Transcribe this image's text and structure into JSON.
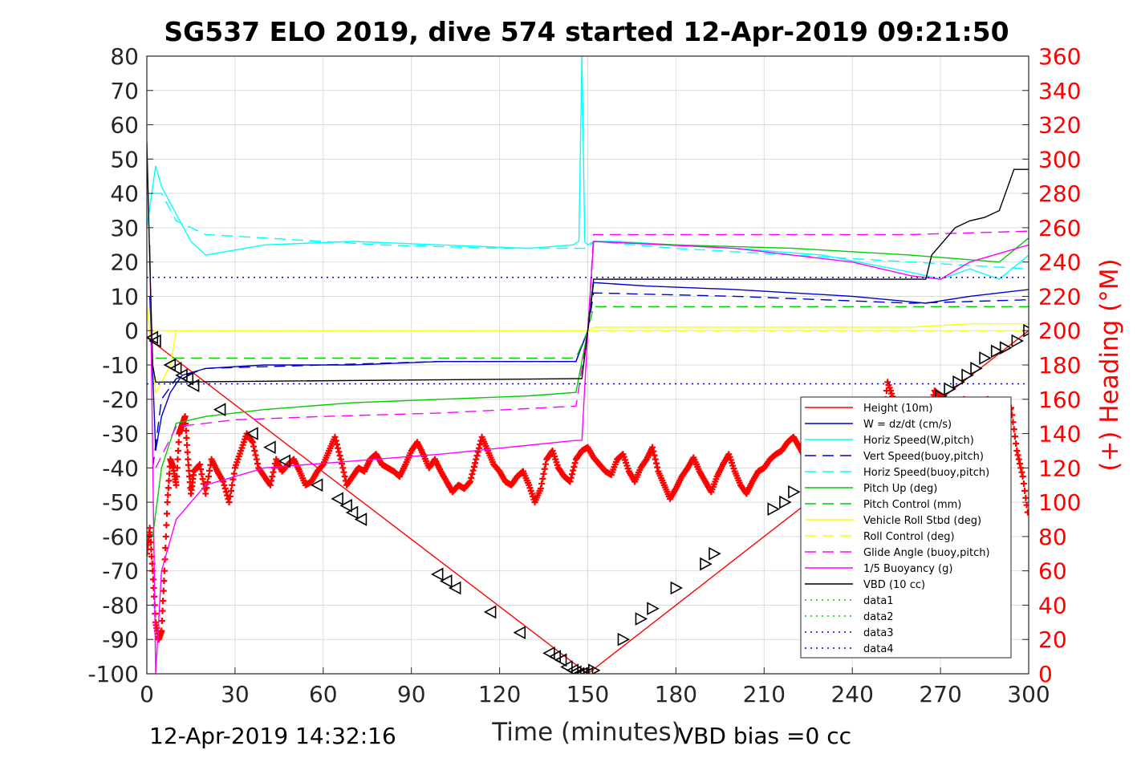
{
  "chart_data": {
    "type": "line",
    "title": "SG537 ELO 2019, dive 574 started 12-Apr-2019 09:21:50",
    "xlabel": "Time (minutes)",
    "ylabel": "",
    "ylabel_right": "(+) Heading (°M)",
    "xlim": [
      0,
      300
    ],
    "ylim": [
      -100,
      80
    ],
    "ylim_right": [
      0,
      360
    ],
    "grid": true,
    "legend_position": "bottom-right",
    "xticks": [
      "0",
      "30",
      "60",
      "90",
      "120",
      "150",
      "180",
      "210",
      "240",
      "270",
      "300"
    ],
    "yticks": [
      "80",
      "70",
      "60",
      "50",
      "40",
      "30",
      "20",
      "10",
      "0",
      "-10",
      "-20",
      "-30",
      "-40",
      "-50",
      "-60",
      "-70",
      "-80",
      "-90",
      "-100"
    ],
    "yticks_right": [
      "360",
      "340",
      "320",
      "300",
      "280",
      "260",
      "240",
      "220",
      "200",
      "180",
      "160",
      "140",
      "120",
      "100",
      "80",
      "60",
      "40",
      "20",
      "0"
    ],
    "footer_left": "12-Apr-2019 14:32:16",
    "footer_right": "VBD bias =0 cc",
    "series": [
      {
        "name": "Height (10m)",
        "color": "#ff0000",
        "style": "solid",
        "x": [
          0,
          150,
          300
        ],
        "y": [
          -2,
          -100,
          0
        ]
      },
      {
        "name": "W = dz/dt (cm/s)",
        "color": "#0000cd",
        "style": "solid",
        "x": [
          1,
          3,
          5,
          8,
          12,
          20,
          40,
          70,
          100,
          130,
          146,
          150,
          152,
          170,
          200,
          240,
          265,
          280,
          300
        ],
        "y": [
          10,
          -35,
          -25,
          -18,
          -13,
          -11,
          -10,
          -10,
          -9,
          -9,
          -9,
          0,
          14,
          13,
          12,
          10,
          8,
          10,
          12
        ]
      },
      {
        "name": "Horiz Speed(W,pitch)",
        "color": "#00ffff",
        "style": "solid",
        "x": [
          0,
          3,
          5,
          10,
          15,
          20,
          40,
          70,
          100,
          130,
          145,
          147,
          148,
          149,
          150,
          152,
          160,
          180,
          200,
          230,
          260,
          270,
          280,
          290,
          300
        ],
        "y": [
          30,
          48,
          42,
          34,
          26,
          22,
          25,
          26,
          25,
          24,
          25,
          26,
          80,
          26,
          25,
          26,
          26,
          25,
          24,
          22,
          17,
          15,
          18,
          15,
          22
        ]
      },
      {
        "name": "Vert Speed(buoy,pitch)",
        "color": "#0000cd",
        "style": "dashed",
        "x": [
          2,
          5,
          10,
          20,
          60,
          100,
          146,
          150,
          152,
          200,
          260,
          300
        ],
        "y": [
          -40,
          -20,
          -14,
          -11,
          -10,
          -9,
          -9,
          0,
          11,
          10,
          8,
          9
        ]
      },
      {
        "name": "Horiz Speed(buoy,pitch)",
        "color": "#00ffff",
        "style": "dashed",
        "x": [
          2,
          5,
          10,
          20,
          40,
          80,
          120,
          146,
          150,
          152,
          180,
          220,
          260,
          300
        ],
        "y": [
          40,
          40,
          32,
          28,
          27,
          25,
          24,
          24,
          24,
          26,
          24,
          22,
          20,
          18
        ]
      },
      {
        "name": "Pitch Up (deg)",
        "color": "#00cc00",
        "style": "solid",
        "x": [
          2,
          5,
          10,
          20,
          40,
          70,
          100,
          130,
          146,
          150,
          152,
          180,
          220,
          260,
          290,
          300
        ],
        "y": [
          -60,
          -40,
          -27,
          -25,
          -23,
          -21,
          -20,
          -19,
          -18,
          0,
          26,
          25,
          24,
          22,
          20,
          27
        ]
      },
      {
        "name": "Pitch Control (mm)",
        "color": "#00cc00",
        "style": "dashed",
        "x": [
          3,
          10,
          60,
          146,
          150,
          152,
          300
        ],
        "y": [
          -8,
          -8,
          -8,
          -8,
          0,
          7,
          7
        ]
      },
      {
        "name": "Vehicle Roll Stbd (deg)",
        "color": "#ffff00",
        "style": "solid",
        "x": [
          0,
          3,
          5,
          8,
          10,
          30,
          60,
          90,
          120,
          146,
          148,
          150,
          152,
          170,
          200,
          230,
          260,
          280,
          300
        ],
        "y": [
          8,
          -18,
          -15,
          -10,
          0,
          0,
          0,
          0,
          0,
          0,
          0,
          0,
          1,
          1,
          1,
          1,
          1,
          2,
          2
        ]
      },
      {
        "name": "Roll Control (deg)",
        "color": "#ffff00",
        "style": "dashed",
        "x": [
          0,
          300
        ],
        "y": [
          0,
          0
        ]
      },
      {
        "name": "Glide Angle (buoy,pitch)",
        "color": "#ff00ff",
        "style": "dashed",
        "x": [
          3,
          10,
          30,
          60,
          100,
          146,
          150,
          152,
          200,
          260,
          300
        ],
        "y": [
          -40,
          -28,
          -26,
          -25,
          -24,
          -22,
          0,
          28,
          28,
          28,
          29
        ]
      },
      {
        "name": "1/5 Buoyancy (g)",
        "color": "#ff00ff",
        "style": "solid",
        "x": [
          1,
          3,
          5,
          10,
          20,
          40,
          70,
          100,
          146,
          148,
          150,
          152,
          200,
          240,
          260,
          270,
          280,
          300
        ],
        "y": [
          25,
          -100,
          -70,
          -55,
          -45,
          -40,
          -38,
          -36,
          -32,
          -32,
          0,
          26,
          24,
          20,
          16,
          15,
          20,
          25
        ]
      },
      {
        "name": "VBD (10 cc)",
        "color": "#000000",
        "style": "solid",
        "x": [
          0,
          1,
          2,
          3,
          146,
          148,
          150,
          152,
          265,
          267,
          275,
          280,
          285,
          290,
          295,
          300
        ],
        "y": [
          55,
          20,
          -10,
          -15,
          -14,
          -14,
          0,
          15,
          15,
          22,
          30,
          32,
          33,
          35,
          47,
          47
        ]
      },
      {
        "name": "data1",
        "color": "#00cc00",
        "style": "dotted",
        "x": [],
        "y": []
      },
      {
        "name": "data2",
        "color": "#00cc00",
        "style": "dotted",
        "x": [],
        "y": []
      },
      {
        "name": "data3",
        "color": "#0000cd",
        "style": "dotted",
        "x": [
          0,
          300
        ],
        "y": [
          15.5,
          15.5
        ]
      },
      {
        "name": "data4",
        "color": "#0000cd",
        "style": "dotted",
        "x": [
          0,
          300
        ],
        "y": [
          -15.5,
          -15.5
        ]
      }
    ],
    "depth_markers": {
      "color": "#000000",
      "x": [
        2,
        3,
        8,
        10,
        12,
        14,
        16,
        25,
        36,
        42,
        47,
        58,
        65,
        68,
        70,
        73,
        99,
        102,
        105,
        117,
        127,
        137,
        139,
        141,
        143,
        145,
        146,
        147,
        148,
        150,
        152,
        162,
        168,
        172,
        180,
        190,
        193,
        213,
        217,
        220,
        270,
        273,
        276,
        279,
        282,
        285,
        289,
        292,
        296,
        300
      ],
      "y": [
        -2,
        -3,
        -10,
        -11,
        -13,
        -14,
        -16,
        -23,
        -30,
        -34,
        -38,
        -45,
        -49,
        -51,
        -53,
        -55,
        -71,
        -73,
        -75,
        -82,
        -88,
        -94,
        -95,
        -96,
        -98,
        -99,
        -99.5,
        -100,
        -100,
        -100,
        -99,
        -90,
        -84,
        -81,
        -75,
        -68,
        -65,
        -52,
        -50,
        -47,
        -19,
        -17,
        -15,
        -13,
        -11,
        -8,
        -6,
        -5,
        -3,
        0
      ]
    },
    "heading": {
      "name": "(+) Heading (°M)",
      "color": "#ff0000",
      "axis": "right",
      "x": [
        0,
        1,
        2,
        3,
        4,
        5,
        6,
        7,
        8,
        9,
        10,
        11,
        12,
        13,
        14,
        15,
        16,
        18,
        20,
        22,
        24,
        26,
        28,
        30,
        32,
        34,
        36,
        38,
        40,
        42,
        44,
        46,
        48,
        50,
        52,
        54,
        56,
        58,
        60,
        62,
        64,
        66,
        68,
        70,
        72,
        74,
        76,
        78,
        80,
        82,
        84,
        86,
        88,
        90,
        92,
        94,
        96,
        98,
        100,
        102,
        104,
        106,
        108,
        110,
        112,
        114,
        116,
        118,
        120,
        122,
        124,
        126,
        128,
        130,
        132,
        134,
        136,
        138,
        140,
        142,
        144,
        146,
        148,
        150,
        152,
        154,
        156,
        158,
        160,
        162,
        164,
        166,
        168,
        170,
        172,
        174,
        176,
        178,
        180,
        182,
        184,
        186,
        188,
        190,
        192,
        194,
        196,
        198,
        200,
        202,
        204,
        206,
        208,
        210,
        212,
        214,
        216,
        218,
        220,
        222,
        224,
        226,
        228,
        230,
        232,
        234,
        236,
        238,
        240,
        242,
        244,
        246,
        248,
        250,
        252,
        254,
        256,
        258,
        260,
        262,
        264,
        266,
        268,
        270,
        272,
        274,
        276,
        278,
        280,
        282,
        284,
        286,
        288,
        290,
        292,
        294,
        296,
        298,
        300
      ],
      "y": [
        70,
        85,
        60,
        30,
        20,
        25,
        60,
        100,
        125,
        120,
        110,
        140,
        145,
        150,
        125,
        105,
        118,
        122,
        105,
        125,
        118,
        112,
        100,
        120,
        130,
        140,
        135,
        120,
        115,
        110,
        125,
        118,
        122,
        125,
        118,
        110,
        112,
        118,
        122,
        130,
        138,
        125,
        110,
        115,
        120,
        118,
        125,
        128,
        122,
        120,
        118,
        115,
        122,
        130,
        135,
        128,
        120,
        125,
        118,
        112,
        106,
        110,
        108,
        112,
        125,
        138,
        130,
        122,
        118,
        112,
        110,
        115,
        118,
        110,
        100,
        108,
        125,
        130,
        120,
        115,
        112,
        125,
        130,
        132,
        126,
        122,
        118,
        116,
        125,
        128,
        118,
        112,
        120,
        125,
        132,
        118,
        110,
        102,
        108,
        115,
        120,
        126,
        118,
        112,
        106,
        115,
        122,
        128,
        118,
        110,
        105,
        112,
        118,
        120,
        125,
        128,
        130,
        135,
        138,
        132,
        126,
        130,
        135,
        138,
        140,
        142,
        138,
        135,
        132,
        130,
        128,
        130,
        135,
        140,
        170,
        160,
        150,
        145,
        138,
        135,
        140,
        150,
        165,
        162,
        150,
        145,
        150,
        160,
        148,
        155,
        150,
        160,
        150,
        140,
        150,
        155,
        130,
        115,
        90
      ]
    }
  }
}
